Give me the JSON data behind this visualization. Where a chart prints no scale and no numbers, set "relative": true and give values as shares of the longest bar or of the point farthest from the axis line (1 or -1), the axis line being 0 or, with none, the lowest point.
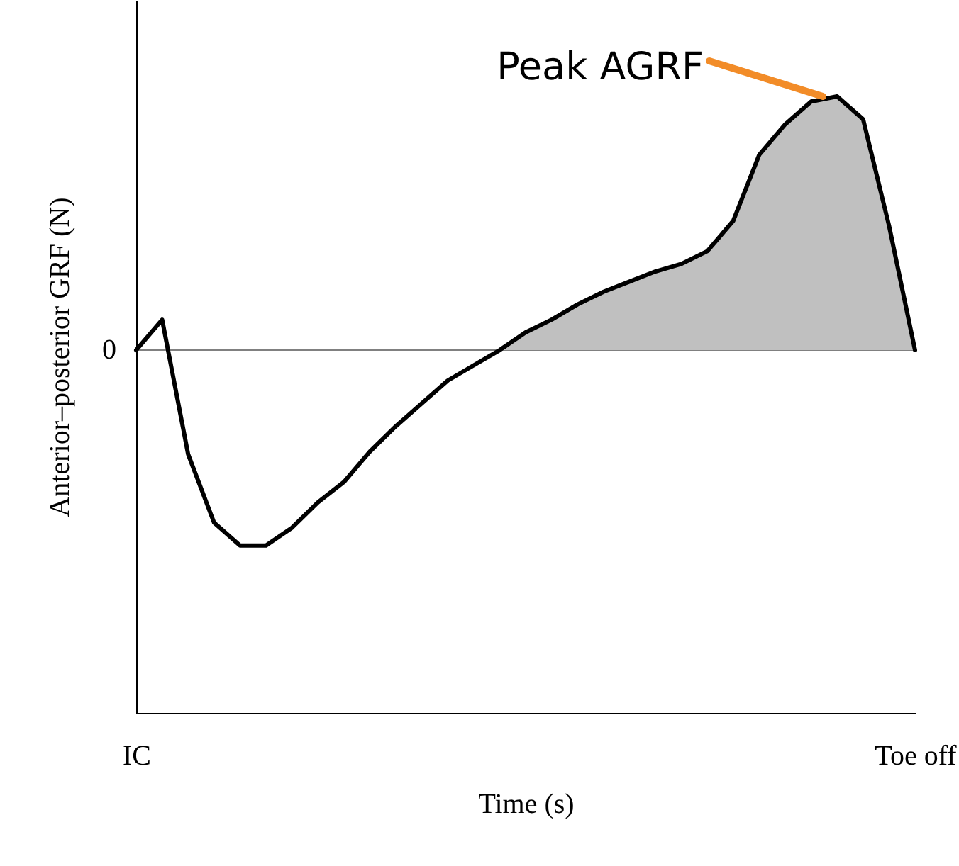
{
  "chart_data": {
    "type": "line",
    "relative": true,
    "xlabel": "Time (s)",
    "ylabel": "Anterior–posterior GRF (N)",
    "categories": [
      "IC",
      null,
      null,
      null,
      null,
      null,
      null,
      null,
      null,
      null,
      null,
      null,
      null,
      null,
      null,
      null,
      null,
      null,
      null,
      null,
      null,
      null,
      null,
      null,
      null,
      null,
      null,
      null,
      null,
      null,
      "Toe off"
    ],
    "series": [
      {
        "type": "area",
        "color": "#c0c0c0",
        "values": [
          null,
          null,
          null,
          null,
          null,
          null,
          null,
          null,
          null,
          null,
          null,
          null,
          null,
          null,
          0,
          0.07,
          0.12,
          0.18,
          0.23,
          0.27,
          0.31,
          0.34,
          0.39,
          0.51,
          0.77,
          0.89,
          0.98,
          1.0,
          0.91,
          0.49,
          0
        ]
      },
      {
        "color": "#000000",
        "values": [
          0,
          0.12,
          -0.41,
          -0.68,
          -0.77,
          -0.77,
          -0.7,
          -0.6,
          -0.52,
          -0.4,
          -0.3,
          -0.21,
          -0.12,
          -0.06,
          0,
          0.07,
          0.12,
          0.18,
          0.23,
          0.27,
          0.31,
          0.34,
          0.39,
          0.51,
          0.77,
          0.89,
          0.98,
          1.0,
          0.91,
          0.49,
          0
        ]
      }
    ],
    "ref_lines": [
      {
        "axis": "y",
        "value": 0,
        "label": "0",
        "color": "#808080"
      }
    ],
    "annotations": [
      "Peak AGRF"
    ],
    "grid": false,
    "marker": "none",
    "line_style": "solid"
  }
}
